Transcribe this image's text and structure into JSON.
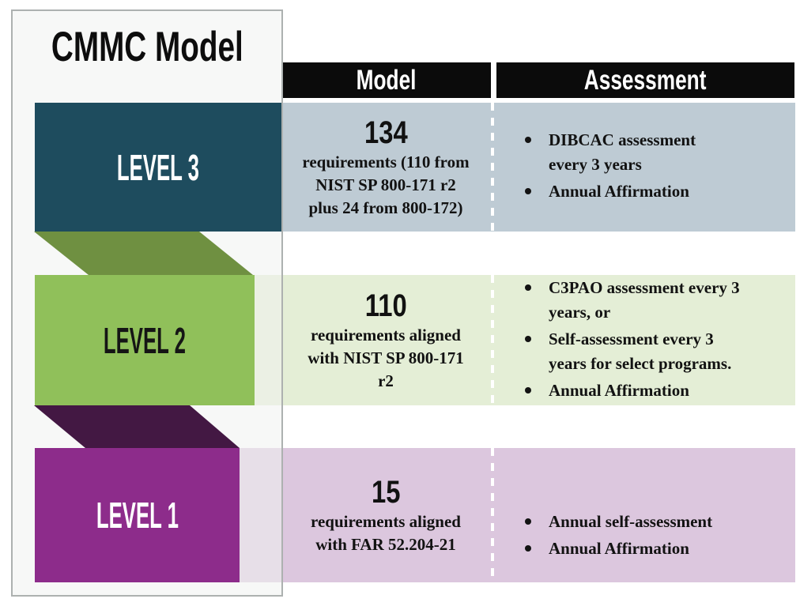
{
  "title": "CMMC Model",
  "table_header": {
    "model": "Model",
    "assessment": "Assessment"
  },
  "levels": [
    {
      "name": "LEVEL 3",
      "model_value": "134",
      "model_desc_lines": [
        "requirements (110 from",
        "NIST SP 800-171 r2",
        "plus 24 from 800-172)"
      ],
      "assessment_bullets": [
        [
          "DIBCAC assessment",
          "every 3 years"
        ],
        [
          "Annual Affirmation"
        ]
      ]
    },
    {
      "name": "LEVEL 2",
      "model_value": "110",
      "model_desc_lines": [
        "requirements aligned",
        "with NIST SP 800-171",
        "r2"
      ],
      "assessment_bullets": [
        [
          "C3PAO assessment every 3",
          "years, or"
        ],
        [
          "Self-assessment every 3",
          "years for select programs."
        ],
        [
          "Annual Affirmation"
        ]
      ]
    },
    {
      "name": "LEVEL 1",
      "model_value": "15",
      "model_desc_lines": [
        "requirements aligned",
        "with FAR 52.204-21"
      ],
      "assessment_bullets": [
        [
          "Annual self-assessment"
        ],
        [
          "Annual Affirmation"
        ]
      ]
    }
  ],
  "colors": {
    "level3_block": "#1E4C5E",
    "level2_block": "#90C05A",
    "level1_block": "#8D2C8B",
    "ribbon_level3_to_level2": "#6F9041",
    "ribbon_level2_to_level1": "#431843",
    "row_level3_bg": "#BECBD4",
    "row_level2_bg": "#E4EED6",
    "row_level1_bg": "#DCC7DE",
    "header_bar": "#0B0B0B",
    "panel_bg": "#F0F2F1",
    "panel_border": "#ADB1B0"
  }
}
